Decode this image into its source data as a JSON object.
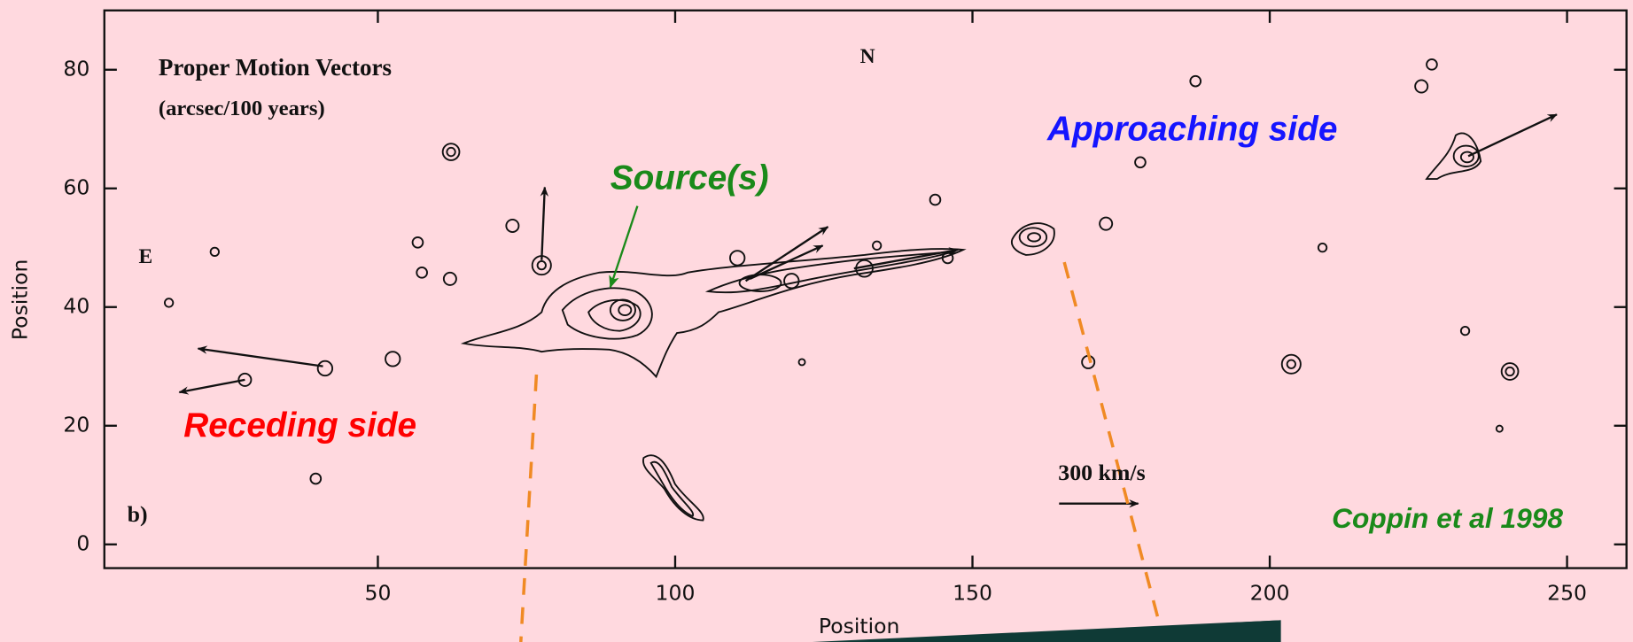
{
  "chart_data": {
    "type": "image-map",
    "xlabel": "Position",
    "ylabel": "Position",
    "xlim": [
      4,
      260
    ],
    "ylim": [
      -4,
      90
    ],
    "xticks": [
      50,
      100,
      150,
      200,
      250
    ],
    "yticks": [
      0,
      20,
      40,
      60,
      80
    ],
    "annotations": {
      "panel_title": "Proper Motion Vectors",
      "units": "(arcsec/100 years)",
      "north": "N",
      "east": "E",
      "panel_label": "b)",
      "approaching": "Approaching side",
      "receding": "Receding side",
      "source": "Source(s)",
      "scale_bar": "300 km/s",
      "credit": "Coppin et al 1998"
    }
  }
}
